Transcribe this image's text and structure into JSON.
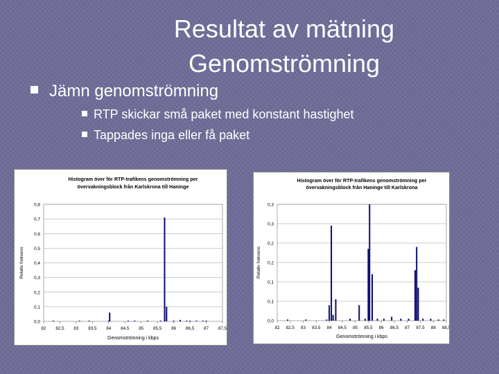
{
  "slide": {
    "title_line1": "Resultat av mätning",
    "title_line2": "Genomströmning",
    "bullet_main": "Jämn genomströmning",
    "sub_bullets": [
      "RTP skickar små paket med konstant hastighet",
      "Tappades inga eller få paket"
    ]
  },
  "chart_data": [
    {
      "type": "bar",
      "title": "Histogram över för RTP-trafikens genomströmning per övervakningsblock från Karlskrona till Haninge",
      "title_lines": [
        "Histogram över för RTP-trafikens genomströmning per",
        "övervakningsblock från Karlskrona till Haninge"
      ],
      "xlabel": "Genomströmning i kbps",
      "ylabel": "Relativ frekvens",
      "xlim": [
        82,
        87.5
      ],
      "x_tick_labels": [
        "82",
        "82,5",
        "83",
        "83,5",
        "84",
        "84,5",
        "85",
        "85,5",
        "86",
        "86,5",
        "87",
        "87,5"
      ],
      "ylim": [
        0,
        0.8
      ],
      "y_tick_labels": [
        "0,0",
        "0,1",
        "0,2",
        "0,3",
        "0,4",
        "0,5",
        "0,6",
        "0,7",
        "0,8"
      ],
      "grid": true,
      "bar_color": "#0a0a6e",
      "series": [
        {
          "x": [
            82.3,
            83.1,
            83.4,
            84.0,
            84.03,
            84.6,
            84.8,
            85.2,
            85.6,
            85.72,
            85.78,
            86.0,
            86.2,
            86.4,
            86.5,
            86.7,
            86.9,
            87.0
          ],
          "values": [
            0.005,
            0.005,
            0.005,
            0.005,
            0.06,
            0.005,
            0.005,
            0.005,
            0.005,
            0.71,
            0.1,
            0.005,
            0.01,
            0.005,
            0.005,
            0.005,
            0.005,
            0.005
          ]
        }
      ]
    },
    {
      "type": "bar",
      "title": "Histogram över för RTP-trafikens genomströmning per övervakningsblock från Haninge till Karlskrona",
      "title_lines": [
        "Histogram över för RTP-trafikens genomströmning per",
        "övervakningsblock från Haninge till Karlskrona"
      ],
      "xlabel": "Genomströmning i kbps",
      "ylabel": "Relativ frekvens",
      "xlim": [
        82,
        88.5
      ],
      "x_tick_labels": [
        "82",
        "82,5",
        "83",
        "83,5",
        "84",
        "84,5",
        "85",
        "85,5",
        "86",
        "86,5",
        "87",
        "87,5",
        "88",
        "88,5"
      ],
      "ylim": [
        0,
        0.3
      ],
      "y_tick_labels": [
        "0,0",
        "0,1",
        "0,1",
        "0,2",
        "0,2",
        "0,3",
        "0,3"
      ],
      "grid": true,
      "bar_color": "#0a0a6e",
      "series": [
        {
          "x": [
            82.4,
            83.1,
            83.9,
            84.0,
            84.08,
            84.15,
            84.25,
            84.8,
            85.15,
            85.38,
            85.5,
            85.55,
            85.65,
            85.85,
            86.1,
            86.4,
            86.75,
            87.05,
            87.3,
            87.36,
            87.42,
            87.6,
            87.9,
            88.2,
            88.4
          ],
          "values": [
            0.003,
            0.003,
            0.003,
            0.04,
            0.245,
            0.015,
            0.055,
            0.005,
            0.04,
            0.005,
            0.185,
            0.3,
            0.12,
            0.005,
            0.005,
            0.01,
            0.005,
            0.005,
            0.13,
            0.19,
            0.085,
            0.005,
            0.005,
            0.003,
            0.003
          ]
        }
      ]
    }
  ]
}
